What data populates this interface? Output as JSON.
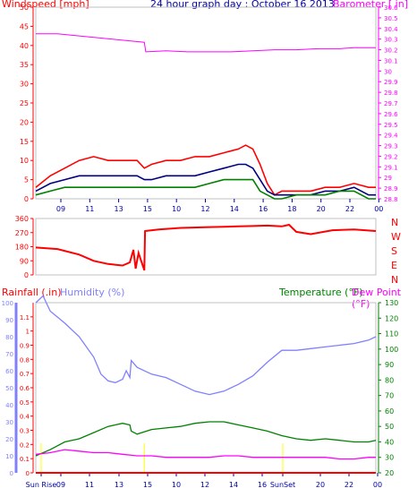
{
  "header": {
    "left_label": "Windspeed [mph]",
    "title": "24 hour graph day : October 16 2013",
    "right_label": "Barometer [ in]"
  },
  "panel3_labels": {
    "rainfall": "Rainfall (.in)",
    "humidity": "Humidity (%)",
    "temperature": "Temperature (°F)",
    "dewpoint": "Dew Point (°F)"
  },
  "colors": {
    "wind": "#ff0000",
    "gust_series": "#000080",
    "wind_low": "#008000",
    "barometer": "#ff00ff",
    "humidity": "#8080ff",
    "temperature": "#008000",
    "dewpoint": "#ff00ff",
    "rain": "#ff0000",
    "time": "#0000a0",
    "sunrise_marker": "#ffff00"
  },
  "chart_data": [
    {
      "type": "line",
      "name": "wind_barometer",
      "x_ticks": [
        "09",
        "11",
        "13",
        "15",
        "10",
        "12",
        "14",
        "16",
        "18",
        "20",
        "22",
        "00"
      ],
      "left_axis": {
        "ticks": [
          0,
          5,
          10,
          15,
          20,
          25,
          30,
          35,
          40,
          45,
          50
        ],
        "ylim": [
          0,
          50
        ]
      },
      "right_axis": {
        "ticks": [
          "28.8",
          "28.9",
          "29",
          "29.1",
          "29.2",
          "29.3",
          "29.4",
          "29.5",
          "29.6",
          "29.7",
          "29.8",
          "29.9",
          "30",
          "30.1",
          "30.2",
          "30.3",
          "30.4",
          "30.5",
          "30.6"
        ],
        "ylim": [
          28.8,
          30.6
        ]
      },
      "series": [
        {
          "role": "wind_max",
          "points": [
            [
              0,
              3
            ],
            [
              2,
              6
            ],
            [
              4,
              8
            ],
            [
              6,
              10
            ],
            [
              8,
              11
            ],
            [
              10,
              10
            ],
            [
              12,
              10
            ],
            [
              14,
              10
            ],
            [
              15,
              8
            ],
            [
              16,
              9
            ],
            [
              18,
              10
            ],
            [
              20,
              10
            ],
            [
              22,
              11
            ],
            [
              24,
              11
            ],
            [
              26,
              12
            ],
            [
              28,
              13
            ],
            [
              29,
              14
            ],
            [
              30,
              13
            ],
            [
              31,
              9
            ],
            [
              32,
              4
            ],
            [
              33,
              1
            ],
            [
              34,
              2
            ],
            [
              36,
              2
            ],
            [
              38,
              2
            ],
            [
              40,
              3
            ],
            [
              42,
              3
            ],
            [
              44,
              4
            ],
            [
              46,
              3
            ],
            [
              47,
              3
            ]
          ]
        },
        {
          "role": "wind_avg",
          "points": [
            [
              0,
              2
            ],
            [
              2,
              4
            ],
            [
              4,
              5
            ],
            [
              6,
              6
            ],
            [
              8,
              6
            ],
            [
              10,
              6
            ],
            [
              12,
              6
            ],
            [
              14,
              6
            ],
            [
              15,
              5
            ],
            [
              16,
              5
            ],
            [
              18,
              6
            ],
            [
              20,
              6
            ],
            [
              22,
              6
            ],
            [
              24,
              7
            ],
            [
              26,
              8
            ],
            [
              28,
              9
            ],
            [
              29,
              9
            ],
            [
              30,
              8
            ],
            [
              31,
              5
            ],
            [
              32,
              2
            ],
            [
              33,
              1
            ],
            [
              34,
              1
            ],
            [
              36,
              1
            ],
            [
              38,
              1
            ],
            [
              40,
              2
            ],
            [
              42,
              2
            ],
            [
              44,
              3
            ],
            [
              46,
              1
            ],
            [
              47,
              1
            ]
          ]
        },
        {
          "role": "wind_low",
          "points": [
            [
              0,
              1
            ],
            [
              2,
              2
            ],
            [
              4,
              3
            ],
            [
              6,
              3
            ],
            [
              8,
              3
            ],
            [
              10,
              3
            ],
            [
              12,
              3
            ],
            [
              14,
              3
            ],
            [
              15,
              3
            ],
            [
              16,
              3
            ],
            [
              18,
              3
            ],
            [
              20,
              3
            ],
            [
              22,
              3
            ],
            [
              24,
              4
            ],
            [
              26,
              5
            ],
            [
              28,
              5
            ],
            [
              29,
              5
            ],
            [
              30,
              5
            ],
            [
              31,
              2
            ],
            [
              32,
              1
            ],
            [
              33,
              0
            ],
            [
              34,
              0
            ],
            [
              36,
              1
            ],
            [
              38,
              1
            ],
            [
              40,
              1
            ],
            [
              42,
              2
            ],
            [
              44,
              2
            ],
            [
              46,
              0
            ],
            [
              47,
              0
            ]
          ]
        },
        {
          "role": "barometer",
          "points": [
            [
              0,
              30.35
            ],
            [
              3,
              30.35
            ],
            [
              6,
              30.33
            ],
            [
              9,
              30.31
            ],
            [
              12,
              30.29
            ],
            [
              15,
              30.27
            ],
            [
              15.2,
              30.18
            ],
            [
              18,
              30.19
            ],
            [
              21,
              30.18
            ],
            [
              24,
              30.18
            ],
            [
              27,
              30.18
            ],
            [
              30,
              30.19
            ],
            [
              33,
              30.2
            ],
            [
              36,
              30.2
            ],
            [
              39,
              30.21
            ],
            [
              42,
              30.21
            ],
            [
              44,
              30.22
            ],
            [
              47,
              30.22
            ]
          ]
        }
      ]
    },
    {
      "type": "line",
      "name": "wind_direction",
      "y_ticks": [
        0,
        90,
        180,
        270,
        360
      ],
      "ylim": [
        0,
        360
      ],
      "right_labels": [
        "N",
        "W",
        "S",
        "E",
        "N"
      ],
      "points": [
        [
          0,
          175
        ],
        [
          3,
          165
        ],
        [
          6,
          130
        ],
        [
          8,
          90
        ],
        [
          10,
          70
        ],
        [
          12,
          60
        ],
        [
          13,
          80
        ],
        [
          13.5,
          160
        ],
        [
          13.8,
          40
        ],
        [
          14.2,
          140
        ],
        [
          15,
          30
        ],
        [
          15.1,
          280
        ],
        [
          17,
          290
        ],
        [
          20,
          300
        ],
        [
          24,
          305
        ],
        [
          28,
          310
        ],
        [
          30,
          312
        ],
        [
          32,
          315
        ],
        [
          34,
          310
        ],
        [
          35,
          320
        ],
        [
          36,
          275
        ],
        [
          38,
          260
        ],
        [
          41,
          285
        ],
        [
          44,
          290
        ],
        [
          47,
          280
        ]
      ]
    },
    {
      "type": "line",
      "name": "rain_humidity_temp",
      "rain_axis": {
        "ticks": [
          "0",
          "0.1",
          "0.2",
          "0.3",
          "0.4",
          "0.5",
          "0.6",
          "0.7",
          "0.8",
          "0.9",
          "1",
          "1.1"
        ],
        "ylim": [
          0,
          1.2
        ]
      },
      "humidity_axis": {
        "ticks": [
          0,
          10,
          20,
          30,
          40,
          50,
          60,
          70,
          80,
          90,
          100
        ],
        "ylim": [
          0,
          100
        ]
      },
      "temp_axis": {
        "ticks": [
          20,
          30,
          40,
          50,
          60,
          70,
          80,
          90,
          100,
          110,
          120,
          130
        ],
        "ylim": [
          20,
          130
        ]
      },
      "x_ticks": [
        "Sun Rise",
        "09",
        "11",
        "13",
        "15",
        "10",
        "12",
        "14",
        "16",
        "SunSet",
        "20",
        "22",
        "00"
      ],
      "series": [
        {
          "role": "humidity",
          "points": [
            [
              0,
              100
            ],
            [
              1,
              104
            ],
            [
              2,
              95
            ],
            [
              4,
              88
            ],
            [
              6,
              80
            ],
            [
              8,
              68
            ],
            [
              9,
              58
            ],
            [
              10,
              54
            ],
            [
              11,
              53
            ],
            [
              12,
              55
            ],
            [
              12.5,
              60
            ],
            [
              13,
              56
            ],
            [
              13.2,
              66
            ],
            [
              14,
              62
            ],
            [
              16,
              58
            ],
            [
              18,
              56
            ],
            [
              20,
              52
            ],
            [
              22,
              48
            ],
            [
              24,
              46
            ],
            [
              26,
              48
            ],
            [
              28,
              52
            ],
            [
              30,
              57
            ],
            [
              32,
              65
            ],
            [
              34,
              72
            ],
            [
              36,
              72
            ],
            [
              38,
              73
            ],
            [
              40,
              74
            ],
            [
              42,
              75
            ],
            [
              44,
              76
            ],
            [
              46,
              78
            ],
            [
              47,
              80
            ]
          ]
        },
        {
          "role": "temperature",
          "points": [
            [
              0,
              31
            ],
            [
              2,
              35
            ],
            [
              4,
              40
            ],
            [
              6,
              42
            ],
            [
              8,
              46
            ],
            [
              10,
              50
            ],
            [
              12,
              52
            ],
            [
              13,
              51
            ],
            [
              13.2,
              47
            ],
            [
              14,
              45
            ],
            [
              16,
              48
            ],
            [
              18,
              49
            ],
            [
              20,
              50
            ],
            [
              22,
              52
            ],
            [
              24,
              53
            ],
            [
              26,
              53
            ],
            [
              28,
              51
            ],
            [
              30,
              49
            ],
            [
              32,
              47
            ],
            [
              34,
              44
            ],
            [
              36,
              42
            ],
            [
              38,
              41
            ],
            [
              40,
              42
            ],
            [
              42,
              41
            ],
            [
              44,
              40
            ],
            [
              46,
              40
            ],
            [
              47,
              41
            ]
          ]
        },
        {
          "role": "dewpoint",
          "points": [
            [
              0,
              32
            ],
            [
              2,
              33
            ],
            [
              4,
              35
            ],
            [
              6,
              34
            ],
            [
              8,
              33
            ],
            [
              10,
              33
            ],
            [
              12,
              32
            ],
            [
              14,
              31
            ],
            [
              16,
              31
            ],
            [
              18,
              30
            ],
            [
              20,
              30
            ],
            [
              22,
              30
            ],
            [
              24,
              30
            ],
            [
              26,
              31
            ],
            [
              28,
              31
            ],
            [
              30,
              30
            ],
            [
              32,
              30
            ],
            [
              34,
              30
            ],
            [
              36,
              30
            ],
            [
              38,
              30
            ],
            [
              40,
              30
            ],
            [
              42,
              29
            ],
            [
              44,
              29
            ],
            [
              46,
              30
            ],
            [
              47,
              30
            ]
          ]
        },
        {
          "role": "rain",
          "points": [
            [
              0,
              0
            ],
            [
              47,
              0
            ]
          ]
        }
      ]
    }
  ]
}
